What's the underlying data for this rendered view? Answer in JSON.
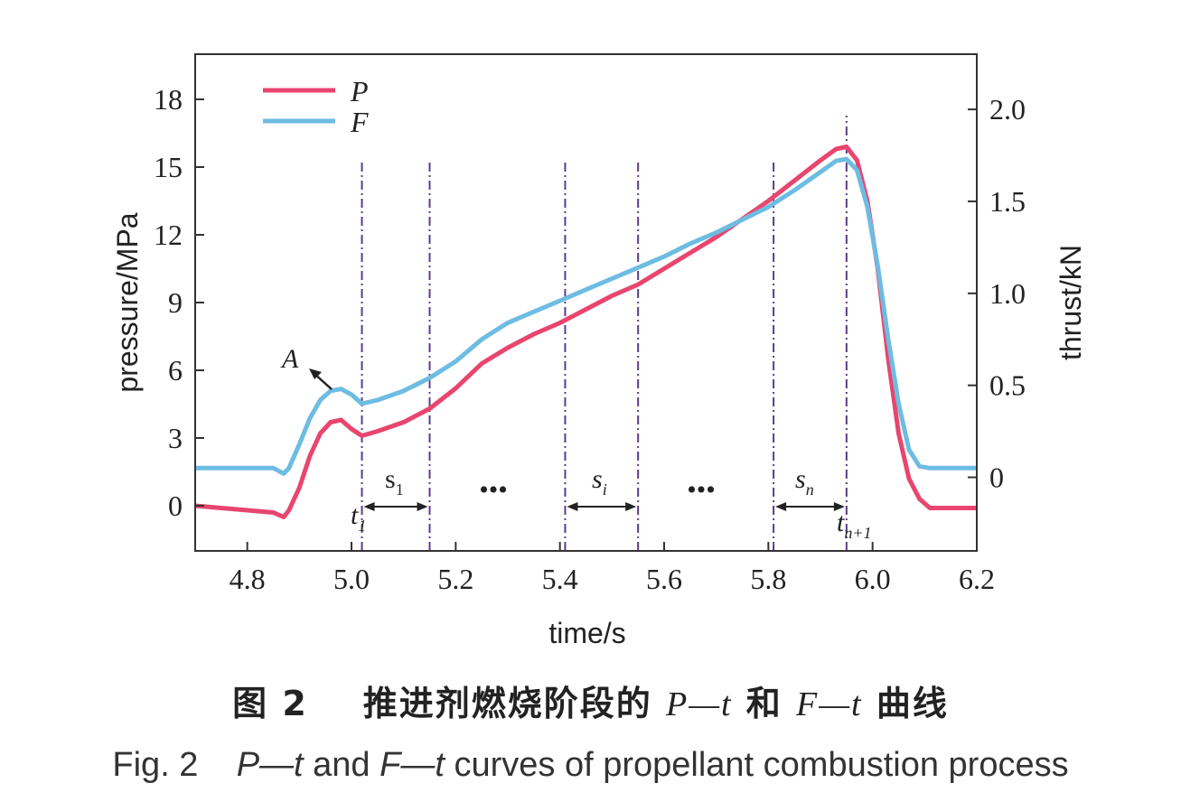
{
  "chart_data": {
    "type": "line",
    "xlabel": "time/s",
    "ylabel": "pressure/MPa",
    "y2label": "thrust/kN",
    "xlim": [
      4.7,
      6.2
    ],
    "ylim": [
      -2,
      20
    ],
    "y2lim": [
      -0.4,
      2.3
    ],
    "xticks": [
      4.8,
      5.0,
      5.2,
      5.4,
      5.6,
      5.8,
      6.0,
      6.2
    ],
    "xtick_labels": [
      "4.8",
      "5.0",
      "5.2",
      "5.4",
      "5.6",
      "5.8",
      "6.0",
      "6.2"
    ],
    "yticks": [
      0,
      3,
      6,
      9,
      12,
      15,
      18
    ],
    "ytick_labels": [
      "0",
      "3",
      "6",
      "9",
      "12",
      "15",
      "18"
    ],
    "y2ticks": [
      0,
      0.5,
      1.0,
      1.5,
      2.0
    ],
    "y2tick_labels": [
      "0",
      "0.5",
      "1.0",
      "1.5",
      "2.0"
    ],
    "legend_position": "top-left",
    "grid": false,
    "series": [
      {
        "name": "P",
        "axis": "left",
        "color": "#e8456f",
        "x": [
          4.7,
          4.75,
          4.8,
          4.85,
          4.87,
          4.88,
          4.9,
          4.92,
          4.94,
          4.96,
          4.98,
          5.0,
          5.02,
          5.05,
          5.1,
          5.15,
          5.2,
          5.25,
          5.3,
          5.35,
          5.4,
          5.45,
          5.5,
          5.55,
          5.6,
          5.65,
          5.7,
          5.75,
          5.8,
          5.85,
          5.9,
          5.93,
          5.95,
          5.97,
          5.99,
          6.01,
          6.03,
          6.05,
          6.07,
          6.09,
          6.11,
          6.15,
          6.2
        ],
        "y": [
          0.0,
          -0.1,
          -0.2,
          -0.3,
          -0.5,
          -0.2,
          0.8,
          2.2,
          3.2,
          3.7,
          3.8,
          3.4,
          3.1,
          3.3,
          3.7,
          4.3,
          5.2,
          6.3,
          7.0,
          7.6,
          8.1,
          8.7,
          9.3,
          9.8,
          10.5,
          11.2,
          11.9,
          12.7,
          13.5,
          14.4,
          15.3,
          15.8,
          15.9,
          15.3,
          13.5,
          10.5,
          6.5,
          3.2,
          1.2,
          0.3,
          -0.1,
          -0.1,
          -0.1
        ]
      },
      {
        "name": "F",
        "axis": "right",
        "color": "#6dbce2",
        "x": [
          4.7,
          4.75,
          4.8,
          4.85,
          4.87,
          4.88,
          4.9,
          4.92,
          4.94,
          4.96,
          4.98,
          5.0,
          5.02,
          5.05,
          5.1,
          5.15,
          5.2,
          5.25,
          5.3,
          5.35,
          5.4,
          5.45,
          5.5,
          5.55,
          5.6,
          5.65,
          5.7,
          5.75,
          5.8,
          5.85,
          5.9,
          5.93,
          5.95,
          5.97,
          5.99,
          6.01,
          6.03,
          6.05,
          6.07,
          6.09,
          6.11,
          6.15,
          6.2
        ],
        "y": [
          0.05,
          0.05,
          0.05,
          0.05,
          0.02,
          0.05,
          0.18,
          0.32,
          0.42,
          0.47,
          0.48,
          0.45,
          0.4,
          0.42,
          0.47,
          0.54,
          0.63,
          0.75,
          0.84,
          0.9,
          0.96,
          1.02,
          1.08,
          1.14,
          1.2,
          1.27,
          1.33,
          1.4,
          1.47,
          1.56,
          1.66,
          1.72,
          1.73,
          1.67,
          1.47,
          1.15,
          0.75,
          0.4,
          0.15,
          0.06,
          0.05,
          0.05,
          0.05
        ]
      }
    ],
    "vlines": [
      5.02,
      5.15,
      5.41,
      5.55,
      5.81,
      5.95
    ],
    "annotations": {
      "point_a": {
        "label": "A",
        "x": 4.95,
        "y": 5.2
      },
      "t1": {
        "label": "t",
        "sub": "1",
        "x": 5.02
      },
      "tn1": {
        "label": "t",
        "sub": "n+1",
        "x": 5.95
      },
      "s1": {
        "label": "s",
        "sub": "1",
        "from": 5.02,
        "to": 5.15
      },
      "si": {
        "label": "s",
        "sub": "i",
        "from": 5.41,
        "to": 5.55
      },
      "sn": {
        "label": "s",
        "sub": "n",
        "from": 5.81,
        "to": 5.95
      },
      "dots1": {
        "label": "•••",
        "x": 5.28
      },
      "dots2": {
        "label": "•••",
        "x": 5.68
      }
    }
  },
  "caption": {
    "cn": {
      "fig": "图 2",
      "a": "推进剂燃烧阶段的",
      "b": "P—t",
      "c": "和",
      "d": "F—t",
      "e": "曲线"
    },
    "en": {
      "fig": "Fig. 2",
      "b": "P—t",
      "c": "and",
      "d": "F—t",
      "e": "curves of propellant combustion process"
    }
  }
}
